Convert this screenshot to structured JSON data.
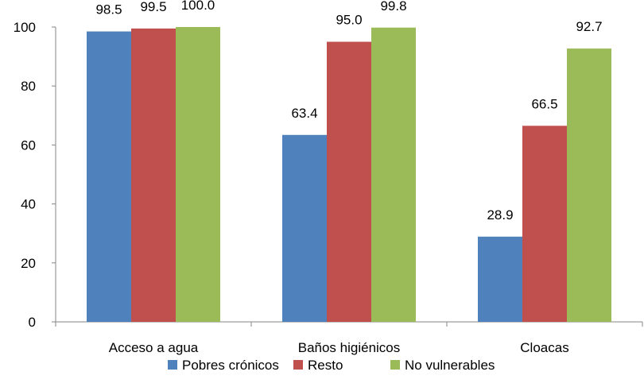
{
  "chart_data": {
    "type": "bar",
    "title": "",
    "xlabel": "",
    "ylabel": "",
    "categories": [
      "Acceso a agua",
      "Baños higiénicos",
      "Cloacas"
    ],
    "series": [
      {
        "name": "Pobres crónicos",
        "color": "#4F81BD",
        "values": [
          98.5,
          63.4,
          28.9
        ],
        "labels": [
          "98.5",
          "63.4",
          "28.9"
        ]
      },
      {
        "name": "Resto",
        "color": "#C0504D",
        "values": [
          99.5,
          95.0,
          66.5
        ],
        "labels": [
          "99.5",
          "95.0",
          "66.5"
        ]
      },
      {
        "name": "No vulnerables",
        "color": "#9BBB59",
        "values": [
          100.0,
          99.8,
          92.7
        ],
        "labels": [
          "100.0",
          "99.8",
          "92.7"
        ]
      }
    ],
    "ylim": [
      0,
      100
    ],
    "yticks": [
      "0",
      "20",
      "40",
      "60",
      "80",
      "100"
    ],
    "grid": false,
    "legend": "bottom"
  }
}
